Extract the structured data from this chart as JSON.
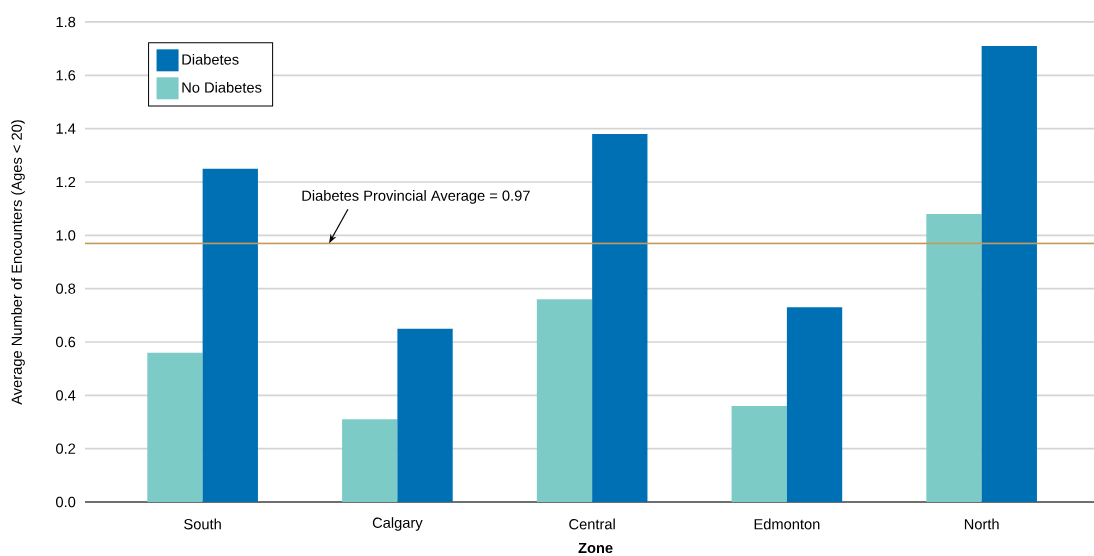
{
  "chart_data": {
    "type": "bar",
    "xlabel": "Zone",
    "ylabel": "Average Number of Encounters (Ages < 20)",
    "categories": [
      "South",
      "Calgary",
      "Central",
      "Edmonton",
      "North"
    ],
    "series": [
      {
        "name": "No Diabetes",
        "color": "#7ccbc6",
        "values": [
          0.56,
          0.31,
          0.76,
          0.36,
          1.08
        ]
      },
      {
        "name": "Diabetes",
        "color": "#0070b5",
        "values": [
          1.25,
          0.65,
          1.38,
          0.73,
          1.71
        ]
      }
    ],
    "ylim": [
      0,
      1.8
    ],
    "yticks": [
      {
        "value": 0,
        "label": "0.0"
      },
      0.2,
      0.4,
      0.6,
      0.8,
      {
        "value": 1,
        "label": "1.0"
      },
      1.2,
      1.4,
      1.6,
      1.8
    ],
    "grid": "y",
    "legend": "top left",
    "ref_lines": [
      {
        "axis": "y",
        "value": 0.97,
        "label": "Diabetes Provincial Average = 0.97",
        "color": "#c49a5c"
      }
    ]
  }
}
